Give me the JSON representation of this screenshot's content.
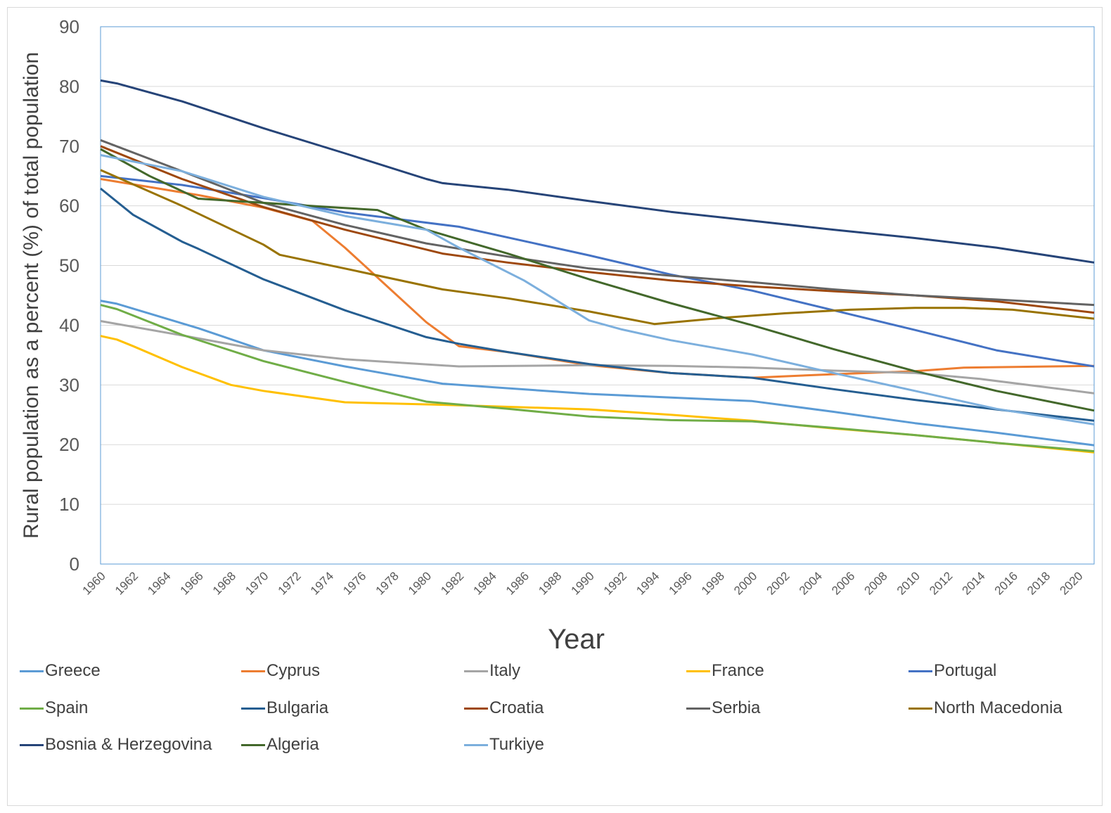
{
  "chart_data": {
    "type": "line",
    "title": "",
    "xlabel": "Year",
    "ylabel": "Rural population as a percent (%) of total population",
    "ylim": [
      0,
      90
    ],
    "yticks": [
      0,
      10,
      20,
      30,
      40,
      50,
      60,
      70,
      80,
      90
    ],
    "xlim": [
      1960,
      2021
    ],
    "xticks": [
      "1960",
      "1962",
      "1964",
      "1966",
      "1968",
      "1970",
      "1972",
      "1974",
      "1976",
      "1978",
      "1980",
      "1982",
      "1984",
      "1986",
      "1988",
      "1990",
      "1992",
      "1994",
      "1996",
      "1998",
      "2000",
      "2002",
      "2004",
      "2006",
      "2008",
      "2010",
      "2012",
      "2014",
      "2016",
      "2018",
      "2020"
    ],
    "grid": "horizontal",
    "legend_position": "bottom",
    "series": [
      {
        "name": "Greece",
        "color": "#5b9bd5",
        "points": [
          [
            1960,
            44.1
          ],
          [
            1961,
            43.6
          ],
          [
            1966,
            39.5
          ],
          [
            1970,
            35.8
          ],
          [
            1975,
            33.1
          ],
          [
            1981,
            30.2
          ],
          [
            1990,
            28.5
          ],
          [
            2000,
            27.3
          ],
          [
            2005,
            25.5
          ],
          [
            2010,
            23.6
          ],
          [
            2015,
            22.0
          ],
          [
            2021,
            19.9
          ]
        ]
      },
      {
        "name": "Cyprus",
        "color": "#ed7d31",
        "points": [
          [
            1960,
            64.5
          ],
          [
            1966,
            61.8
          ],
          [
            1970,
            59.7
          ],
          [
            1973,
            57.5
          ],
          [
            1975,
            53.0
          ],
          [
            1977,
            48.0
          ],
          [
            1980,
            40.5
          ],
          [
            1982,
            36.5
          ],
          [
            1985,
            35.5
          ],
          [
            1990,
            33.3
          ],
          [
            1995,
            32.0
          ],
          [
            2000,
            31.2
          ],
          [
            2005,
            31.8
          ],
          [
            2010,
            32.3
          ],
          [
            2013,
            32.9
          ],
          [
            2021,
            33.2
          ]
        ]
      },
      {
        "name": "Italy",
        "color": "#a5a5a5",
        "points": [
          [
            1960,
            40.7
          ],
          [
            1965,
            38.3
          ],
          [
            1970,
            35.8
          ],
          [
            1975,
            34.3
          ],
          [
            1982,
            33.1
          ],
          [
            1990,
            33.3
          ],
          [
            1995,
            33.2
          ],
          [
            2000,
            32.9
          ],
          [
            2005,
            32.4
          ],
          [
            2010,
            32.0
          ],
          [
            2014,
            31.0
          ],
          [
            2021,
            28.6
          ]
        ]
      },
      {
        "name": "France",
        "color": "#ffc000",
        "points": [
          [
            1960,
            38.2
          ],
          [
            1961,
            37.6
          ],
          [
            1962,
            36.5
          ],
          [
            1965,
            33.0
          ],
          [
            1968,
            30.0
          ],
          [
            1970,
            29.0
          ],
          [
            1975,
            27.1
          ],
          [
            1982,
            26.6
          ],
          [
            1990,
            25.9
          ],
          [
            1995,
            25.0
          ],
          [
            2000,
            24.0
          ],
          [
            2005,
            22.7
          ],
          [
            2010,
            21.6
          ],
          [
            2015,
            20.3
          ],
          [
            2021,
            18.7
          ]
        ]
      },
      {
        "name": "Portugal",
        "color": "#4472c4",
        "points": [
          [
            1960,
            65.0
          ],
          [
            1965,
            63.5
          ],
          [
            1970,
            61.3
          ],
          [
            1975,
            58.9
          ],
          [
            1982,
            56.5
          ],
          [
            1990,
            51.7
          ],
          [
            1995,
            48.5
          ],
          [
            2000,
            45.8
          ],
          [
            2005,
            42.5
          ],
          [
            2010,
            39.2
          ],
          [
            2015,
            35.8
          ],
          [
            2021,
            33.1
          ]
        ]
      },
      {
        "name": "Spain",
        "color": "#70ad47",
        "points": [
          [
            1960,
            43.4
          ],
          [
            1961,
            42.7
          ],
          [
            1965,
            38.4
          ],
          [
            1970,
            34.0
          ],
          [
            1975,
            30.5
          ],
          [
            1980,
            27.2
          ],
          [
            1985,
            26.0
          ],
          [
            1990,
            24.7
          ],
          [
            1995,
            24.1
          ],
          [
            2000,
            23.9
          ],
          [
            2005,
            22.8
          ],
          [
            2010,
            21.6
          ],
          [
            2015,
            20.3
          ],
          [
            2021,
            18.9
          ]
        ]
      },
      {
        "name": "Bulgaria",
        "color": "#255e91",
        "points": [
          [
            1960,
            62.9
          ],
          [
            1962,
            58.5
          ],
          [
            1965,
            54.0
          ],
          [
            1966,
            52.8
          ],
          [
            1970,
            47.7
          ],
          [
            1975,
            42.5
          ],
          [
            1980,
            38.0
          ],
          [
            1982,
            36.9
          ],
          [
            1985,
            35.5
          ],
          [
            1990,
            33.5
          ],
          [
            1995,
            32.0
          ],
          [
            2000,
            31.2
          ],
          [
            2005,
            29.3
          ],
          [
            2010,
            27.5
          ],
          [
            2015,
            25.9
          ],
          [
            2021,
            24.0
          ]
        ]
      },
      {
        "name": "Croatia",
        "color": "#9e480e",
        "points": [
          [
            1960,
            70.0
          ],
          [
            1965,
            64.5
          ],
          [
            1970,
            59.8
          ],
          [
            1975,
            56.0
          ],
          [
            1981,
            52.0
          ],
          [
            1985,
            50.5
          ],
          [
            1990,
            48.9
          ],
          [
            1995,
            47.5
          ],
          [
            2000,
            46.5
          ],
          [
            2005,
            45.7
          ],
          [
            2010,
            45.0
          ],
          [
            2015,
            44.0
          ],
          [
            2021,
            42.1
          ]
        ]
      },
      {
        "name": "Serbia",
        "color": "#636363",
        "points": [
          [
            1960,
            71.0
          ],
          [
            1965,
            65.8
          ],
          [
            1970,
            60.5
          ],
          [
            1975,
            56.8
          ],
          [
            1980,
            53.7
          ],
          [
            1985,
            51.5
          ],
          [
            1990,
            49.5
          ],
          [
            1995,
            48.3
          ],
          [
            2000,
            47.2
          ],
          [
            2005,
            46.0
          ],
          [
            2010,
            45.0
          ],
          [
            2015,
            44.3
          ],
          [
            2021,
            43.4
          ]
        ]
      },
      {
        "name": "North Macedonia",
        "color": "#997300",
        "points": [
          [
            1960,
            66.0
          ],
          [
            1965,
            60.0
          ],
          [
            1970,
            53.5
          ],
          [
            1971,
            51.8
          ],
          [
            1975,
            49.5
          ],
          [
            1981,
            46.0
          ],
          [
            1985,
            44.5
          ],
          [
            1990,
            42.3
          ],
          [
            1994,
            40.2
          ],
          [
            1998,
            41.2
          ],
          [
            2002,
            42.0
          ],
          [
            2006,
            42.6
          ],
          [
            2010,
            42.9
          ],
          [
            2013,
            42.9
          ],
          [
            2016,
            42.6
          ],
          [
            2021,
            41.1
          ]
        ]
      },
      {
        "name": "Bosnia & Herzegovina",
        "color": "#264478",
        "points": [
          [
            1960,
            81.0
          ],
          [
            1961,
            80.5
          ],
          [
            1965,
            77.5
          ],
          [
            1970,
            73.0
          ],
          [
            1975,
            68.8
          ],
          [
            1980,
            64.5
          ],
          [
            1981,
            63.8
          ],
          [
            1985,
            62.7
          ],
          [
            1990,
            60.8
          ],
          [
            1995,
            59.0
          ],
          [
            2000,
            57.5
          ],
          [
            2005,
            56.0
          ],
          [
            2010,
            54.6
          ],
          [
            2015,
            53.0
          ],
          [
            2021,
            50.5
          ]
        ]
      },
      {
        "name": "Algeria",
        "color": "#43682b",
        "points": [
          [
            1960,
            69.5
          ],
          [
            1963,
            65.0
          ],
          [
            1966,
            61.2
          ],
          [
            1970,
            60.5
          ],
          [
            1974,
            59.8
          ],
          [
            1977,
            59.3
          ],
          [
            1980,
            56.0
          ],
          [
            1985,
            52.0
          ],
          [
            1990,
            47.7
          ],
          [
            1995,
            43.7
          ],
          [
            2000,
            40.0
          ],
          [
            2005,
            36.0
          ],
          [
            2010,
            32.3
          ],
          [
            2015,
            29.0
          ],
          [
            2021,
            25.7
          ]
        ]
      },
      {
        "name": "Turkiye",
        "color": "#7cafdd",
        "points": [
          [
            1960,
            68.5
          ],
          [
            1965,
            65.8
          ],
          [
            1970,
            61.5
          ],
          [
            1975,
            58.3
          ],
          [
            1980,
            56.0
          ],
          [
            1982,
            53.0
          ],
          [
            1986,
            47.5
          ],
          [
            1990,
            40.8
          ],
          [
            1992,
            39.3
          ],
          [
            1995,
            37.5
          ],
          [
            2000,
            35.1
          ],
          [
            2005,
            32.0
          ],
          [
            2010,
            29.0
          ],
          [
            2015,
            26.0
          ],
          [
            2021,
            23.4
          ]
        ]
      }
    ]
  }
}
